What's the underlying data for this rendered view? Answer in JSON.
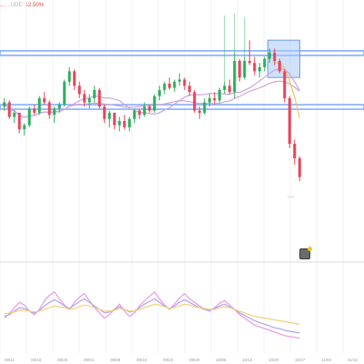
{
  "header": {
    "left_fragment": "...",
    "mid_fragment": "...UDE:",
    "value": "12.50%"
  },
  "price_tag": "0.00",
  "x_axis": {
    "ticks": [
      "08/11",
      "08/18",
      "08/25",
      "09/01",
      "09/08",
      "09/15",
      "09/22",
      "09/29",
      "10/06",
      "10/13",
      "10/20",
      "10/27",
      "11/03",
      "11/10"
    ]
  },
  "colors": {
    "up": "#2eae5f",
    "down": "#e8455a",
    "band": "#7aa9ff",
    "box": "#a9c8f5",
    "ma_long": "#d7a3c7",
    "ma_mid": "#c9a6e6",
    "ma_short": "#f3c26b",
    "osc_pink": "#e89be0",
    "osc_purple": "#b3a4ef",
    "osc_yellow": "#f2cf7d"
  },
  "chart_data": [
    {
      "type": "line",
      "title": "",
      "series": [
        {
          "name": "",
          "candles": [
            [
              58,
              62,
              56,
              60
            ],
            [
              60,
              61,
              52,
              53
            ],
            [
              53,
              56,
              50,
              55
            ],
            [
              55,
              55,
              45,
              47
            ],
            [
              47,
              50,
              44,
              49
            ],
            [
              49,
              58,
              48,
              57
            ],
            [
              57,
              59,
              54,
              55
            ],
            [
              55,
              63,
              54,
              62
            ],
            [
              62,
              65,
              59,
              60
            ],
            [
              60,
              61,
              52,
              54
            ],
            [
              54,
              58,
              50,
              57
            ],
            [
              57,
              60,
              55,
              59
            ],
            [
              59,
              71,
              58,
              70
            ],
            [
              70,
              77,
              68,
              75
            ],
            [
              75,
              76,
              66,
              68
            ],
            [
              68,
              70,
              62,
              64
            ],
            [
              64,
              66,
              58,
              60
            ],
            [
              60,
              64,
              57,
              62
            ],
            [
              62,
              68,
              60,
              66
            ],
            [
              66,
              67,
              57,
              58
            ],
            [
              58,
              59,
              50,
              52
            ],
            [
              52,
              56,
              48,
              55
            ],
            [
              55,
              55,
              47,
              49
            ],
            [
              49,
              53,
              46,
              51
            ],
            [
              51,
              54,
              47,
              48
            ],
            [
              48,
              53,
              46,
              52
            ],
            [
              52,
              57,
              50,
              56
            ],
            [
              56,
              57,
              52,
              54
            ],
            [
              54,
              60,
              53,
              58
            ],
            [
              58,
              59,
              55,
              56
            ],
            [
              56,
              64,
              55,
              63
            ],
            [
              63,
              68,
              61,
              66
            ],
            [
              66,
              70,
              64,
              69
            ],
            [
              69,
              72,
              66,
              67
            ],
            [
              67,
              71,
              65,
              70
            ],
            [
              70,
              74,
              68,
              71
            ],
            [
              71,
              72,
              66,
              68
            ],
            [
              68,
              70,
              63,
              65
            ],
            [
              65,
              66,
              55,
              56
            ],
            [
              56,
              58,
              52,
              55
            ],
            [
              55,
              62,
              54,
              60
            ],
            [
              60,
              64,
              58,
              62
            ],
            [
              62,
              65,
              59,
              61
            ],
            [
              61,
              67,
              60,
              66
            ],
            [
              66,
              70,
              64,
              68
            ],
            [
              68,
              71,
              64,
              65
            ],
            [
              65,
              84,
              62,
              80
            ],
            [
              80,
              81,
              70,
              72
            ],
            [
              72,
              82,
              71,
              80
            ],
            [
              80,
              90,
              78,
              79
            ],
            [
              79,
              82,
              73,
              75
            ],
            [
              75,
              79,
              72,
              77
            ],
            [
              77,
              82,
              75,
              81
            ],
            [
              81,
              86,
              79,
              84
            ],
            [
              84,
              86,
              78,
              80
            ],
            [
              80,
              81,
              74,
              75
            ],
            [
              75,
              76,
              60,
              62
            ],
            [
              62,
              63,
              38,
              40
            ],
            [
              40,
              42,
              30,
              33
            ],
            [
              33,
              34,
              22,
              24
            ]
          ]
        }
      ],
      "bands": {
        "upper": 84,
        "lower": 58
      },
      "ylim": [
        15,
        105
      ]
    },
    {
      "type": "line",
      "title": "",
      "series": [
        {
          "name": "",
          "values": [
            40,
            45,
            52,
            58,
            55,
            48,
            44,
            50,
            60,
            66,
            70,
            62,
            55,
            50,
            58,
            64,
            68,
            60,
            52,
            46,
            40,
            44,
            50,
            56,
            48,
            42,
            46,
            54,
            60,
            65,
            70,
            62,
            55,
            50,
            56,
            63,
            68,
            62,
            58,
            54,
            50,
            48,
            52,
            57,
            60,
            55,
            50,
            44,
            40,
            36,
            32,
            30,
            28,
            26,
            24,
            22,
            20,
            19,
            18,
            17
          ]
        },
        {
          "name": "",
          "values": [
            42,
            44,
            48,
            52,
            51,
            48,
            46,
            49,
            54,
            58,
            61,
            58,
            54,
            51,
            55,
            59,
            62,
            58,
            54,
            50,
            46,
            47,
            50,
            53,
            50,
            47,
            48,
            52,
            56,
            59,
            62,
            58,
            54,
            51,
            54,
            58,
            61,
            58,
            55,
            52,
            50,
            49,
            51,
            54,
            56,
            53,
            50,
            46,
            43,
            40,
            37,
            35,
            33,
            31,
            29,
            28,
            26,
            25,
            24,
            23
          ]
        },
        {
          "name": "",
          "values": [
            45,
            46,
            47,
            49,
            49,
            48,
            47,
            48,
            50,
            52,
            54,
            53,
            52,
            50,
            51,
            53,
            55,
            54,
            52,
            50,
            48,
            48,
            49,
            51,
            50,
            48,
            48,
            50,
            52,
            54,
            56,
            55,
            53,
            51,
            52,
            54,
            56,
            55,
            53,
            52,
            51,
            50,
            50,
            52,
            53,
            52,
            50,
            48,
            46,
            44,
            42,
            41,
            40,
            39,
            38,
            37,
            36,
            35,
            34,
            33
          ]
        }
      ],
      "ylim": [
        0,
        100
      ]
    }
  ]
}
